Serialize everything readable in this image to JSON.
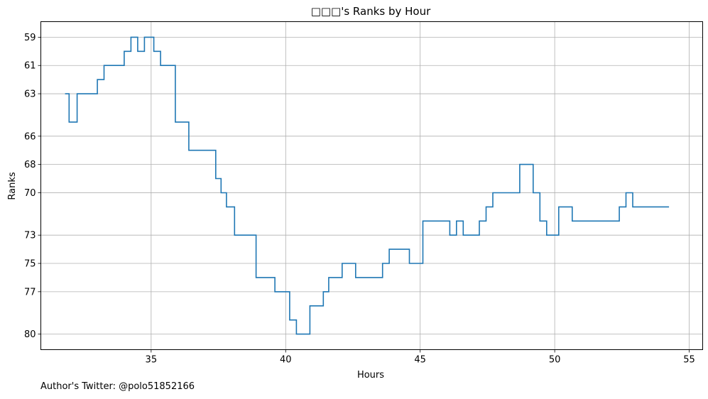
{
  "chart_data": {
    "type": "line",
    "title": "□□□'s Ranks by Hour",
    "xlabel": "Hours",
    "ylabel": "Ranks",
    "xlim": [
      30.9,
      55.5
    ],
    "ylim": [
      81.1,
      57.9
    ],
    "y_inverted": true,
    "step": "post",
    "grid": true,
    "x_ticks": [
      35,
      40,
      45,
      50,
      55
    ],
    "y_ticks": [
      59,
      61,
      63,
      66,
      68,
      70,
      73,
      75,
      77,
      80
    ],
    "color": "#1f77b4",
    "series": [
      {
        "x": [
          31.8,
          31.95,
          32.25,
          32.25,
          33.0,
          33.25,
          34.0,
          34.25,
          34.5,
          34.75,
          35.1,
          35.35,
          35.9,
          36.4,
          37.4,
          37.6,
          37.8,
          38.1,
          38.9,
          39.6,
          40.15,
          40.4,
          40.9,
          41.4,
          41.6,
          42.1,
          42.6,
          43.6,
          43.85,
          44.6,
          45.1,
          46.1,
          46.35,
          46.6,
          47.2,
          47.45,
          47.7,
          48.7,
          49.2,
          49.45,
          49.7,
          50.15,
          50.65,
          52.4,
          52.65,
          52.9,
          54.25
        ],
        "y": [
          63,
          65,
          63,
          63,
          62,
          61,
          60,
          59,
          60,
          59,
          60,
          61,
          65,
          67,
          69,
          70,
          71,
          73,
          76,
          77,
          79,
          80,
          78,
          77,
          76,
          75,
          76,
          75,
          74,
          75,
          72,
          73,
          72,
          73,
          72,
          71,
          70,
          68,
          70,
          72,
          73,
          71,
          72,
          71,
          70,
          71,
          71
        ]
      }
    ]
  },
  "footnote": "Author's Twitter: @polo51852166"
}
